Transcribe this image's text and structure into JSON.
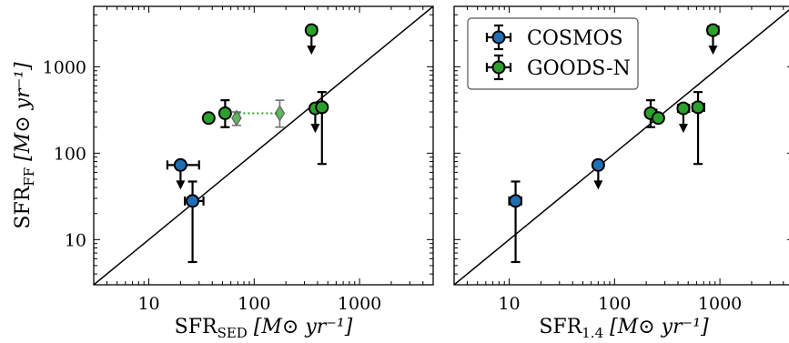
{
  "chart_data": [
    {
      "type": "scatter",
      "xscale": "log",
      "yscale": "log",
      "xlim": [
        3,
        5000
      ],
      "ylim": [
        3,
        5000
      ],
      "xlabel_main": "SFR",
      "xlabel_sub": "SED",
      "xlabel_unit": " [M⊙ yr⁻¹]",
      "ylabel_main": "SFR",
      "ylabel_sub": "FF",
      "ylabel_unit": " [M⊙ yr⁻¹]",
      "xticks": [
        {
          "v": 10,
          "label": "10"
        },
        {
          "v": 100,
          "label": "100"
        },
        {
          "v": 1000,
          "label": "1000"
        }
      ],
      "yticks": [
        {
          "v": 10,
          "label": "10"
        },
        {
          "v": 100,
          "label": "100"
        },
        {
          "v": 1000,
          "label": "1000"
        }
      ],
      "one_to_one_line": true,
      "series": [
        {
          "name": "COSMOS",
          "color": "#1f6fb5",
          "points": [
            {
              "x": 20,
              "y": 73,
              "xerr": [
                5,
                10
              ],
              "yerr": [
                0,
                0
              ],
              "upper_limit": true
            },
            {
              "x": 26,
              "y": 28,
              "xerr": [
                4,
                7
              ],
              "yerr": [
                22.5,
                19
              ],
              "upper_limit": false
            }
          ]
        },
        {
          "name": "GOODS-N",
          "color": "#2ca02c",
          "points": [
            {
              "x": 37,
              "y": 255,
              "xerr": [
                0,
                0
              ],
              "yerr": [
                0,
                0
              ],
              "upper_limit": false
            },
            {
              "x": 53,
              "y": 290,
              "xerr": [
                0,
                0
              ],
              "yerr": [
                90,
                120
              ],
              "upper_limit": false
            },
            {
              "x": 350,
              "y": 2650,
              "xerr": [
                30,
                40
              ],
              "yerr": [
                0,
                0
              ],
              "upper_limit": true
            },
            {
              "x": 380,
              "y": 330,
              "xerr": [
                0,
                0
              ],
              "yerr": [
                0,
                0
              ],
              "upper_limit": true
            },
            {
              "x": 440,
              "y": 340,
              "xerr": [
                0,
                0
              ],
              "yerr": [
                265,
                170
              ],
              "upper_limit": false
            }
          ]
        }
      ],
      "alt_markers": [
        {
          "x": 68,
          "y": 255,
          "yerr": [
            45,
            45
          ]
        },
        {
          "x": 175,
          "y": 290,
          "yerr": [
            90,
            120
          ]
        }
      ],
      "alt_link": {
        "from": {
          "x": 53,
          "y": 290
        },
        "to": {
          "x": 175,
          "y": 290
        }
      }
    },
    {
      "type": "scatter",
      "xscale": "log",
      "yscale": "log",
      "xlim": [
        3,
        5000
      ],
      "ylim": [
        3,
        5000
      ],
      "xlabel_main": "SFR",
      "xlabel_sub": "1.4",
      "xlabel_unit": " [M⊙ yr⁻¹]",
      "xticks": [
        {
          "v": 10,
          "label": "10"
        },
        {
          "v": 100,
          "label": "100"
        },
        {
          "v": 1000,
          "label": "1000"
        }
      ],
      "one_to_one_line": true,
      "legend": {
        "placement": "top-left",
        "entries": [
          "COSMOS",
          "GOODS-N"
        ]
      },
      "series": [
        {
          "name": "COSMOS",
          "color": "#1f6fb5",
          "points": [
            {
              "x": 11.5,
              "y": 28,
              "xerr": [
                1.5,
                1.5
              ],
              "yerr": [
                22.5,
                19
              ],
              "upper_limit": false
            },
            {
              "x": 70,
              "y": 73,
              "xerr": [
                0,
                0
              ],
              "yerr": [
                0,
                0
              ],
              "upper_limit": true
            }
          ]
        },
        {
          "name": "GOODS-N",
          "color": "#2ca02c",
          "points": [
            {
              "x": 220,
              "y": 290,
              "xerr": [
                20,
                30
              ],
              "yerr": [
                90,
                120
              ],
              "upper_limit": false
            },
            {
              "x": 260,
              "y": 255,
              "xerr": [
                0,
                0
              ],
              "yerr": [
                0,
                0
              ],
              "upper_limit": false
            },
            {
              "x": 450,
              "y": 330,
              "xerr": [
                50,
                60
              ],
              "yerr": [
                0,
                0
              ],
              "upper_limit": true
            },
            {
              "x": 620,
              "y": 340,
              "xerr": [
                70,
                90
              ],
              "yerr": [
                265,
                170
              ],
              "upper_limit": false
            },
            {
              "x": 860,
              "y": 2650,
              "xerr": [
                90,
                110
              ],
              "yerr": [
                0,
                0
              ],
              "upper_limit": true
            }
          ]
        }
      ]
    }
  ]
}
